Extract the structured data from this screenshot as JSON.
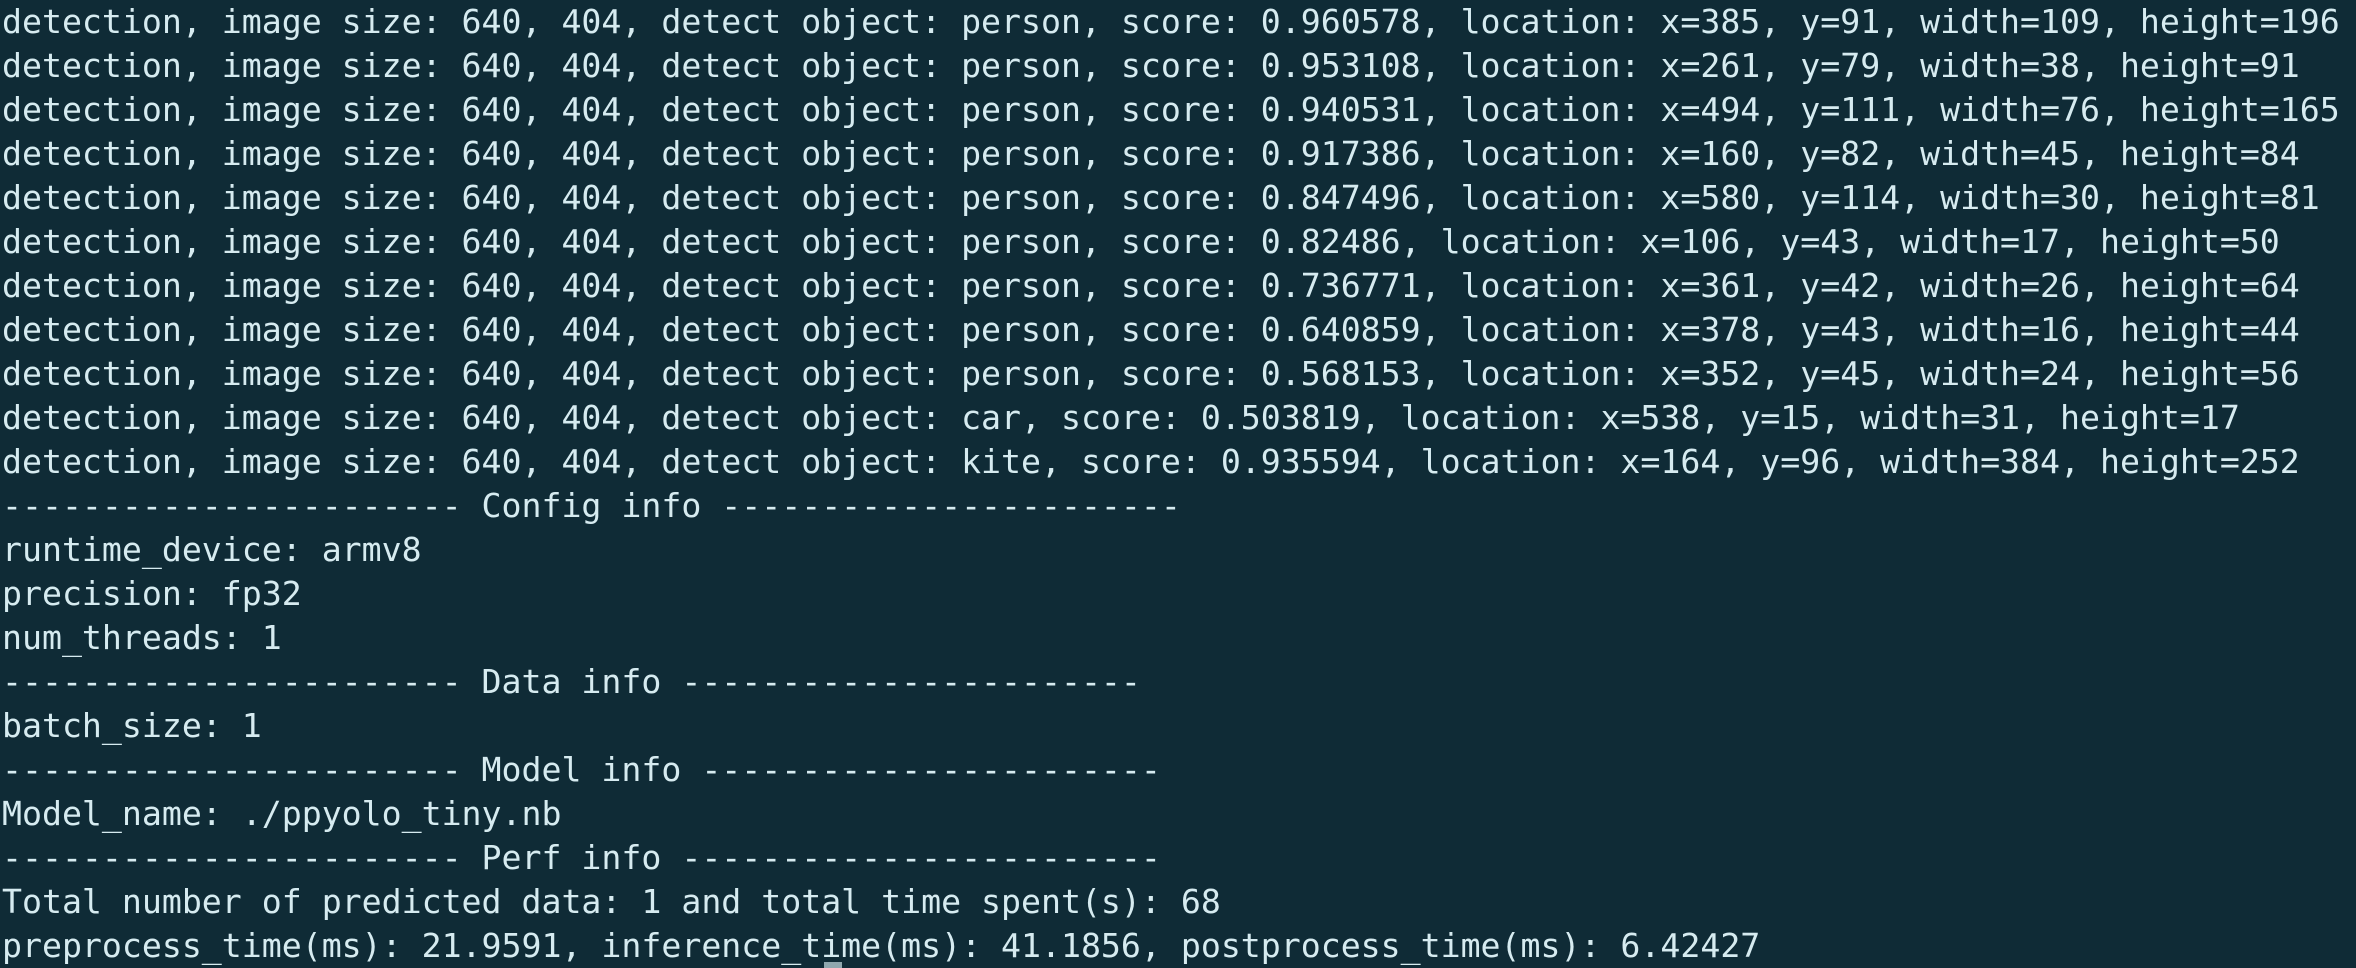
{
  "terminal": {
    "lines": [
      "detection, image size: 640, 404, detect object: person, score: 0.960578, location: x=385, y=91, width=109, height=196",
      "detection, image size: 640, 404, detect object: person, score: 0.953108, location: x=261, y=79, width=38, height=91",
      "detection, image size: 640, 404, detect object: person, score: 0.940531, location: x=494, y=111, width=76, height=165",
      "detection, image size: 640, 404, detect object: person, score: 0.917386, location: x=160, y=82, width=45, height=84",
      "detection, image size: 640, 404, detect object: person, score: 0.847496, location: x=580, y=114, width=30, height=81",
      "detection, image size: 640, 404, detect object: person, score: 0.82486, location: x=106, y=43, width=17, height=50",
      "detection, image size: 640, 404, detect object: person, score: 0.736771, location: x=361, y=42, width=26, height=64",
      "detection, image size: 640, 404, detect object: person, score: 0.640859, location: x=378, y=43, width=16, height=44",
      "detection, image size: 640, 404, detect object: person, score: 0.568153, location: x=352, y=45, width=24, height=56",
      "detection, image size: 640, 404, detect object: car, score: 0.503819, location: x=538, y=15, width=31, height=17",
      "detection, image size: 640, 404, detect object: kite, score: 0.935594, location: x=164, y=96, width=384, height=252",
      "----------------------- Config info -----------------------",
      "runtime_device: armv8",
      "precision: fp32",
      "num_threads: 1",
      "----------------------- Data info -----------------------",
      "batch_size: 1",
      "----------------------- Model info -----------------------",
      "Model_name: ./ppyolo_tiny.nb",
      "----------------------- Perf info ------------------------",
      "Total number of predicted data: 1 and total time spent(s): 68",
      "preprocess_time(ms): 21.9591, inference_time(ms): 41.1856, postprocess_time(ms): 6.42427"
    ]
  },
  "colors": {
    "background": "#0f2b36",
    "text": "#d6ebf0"
  }
}
